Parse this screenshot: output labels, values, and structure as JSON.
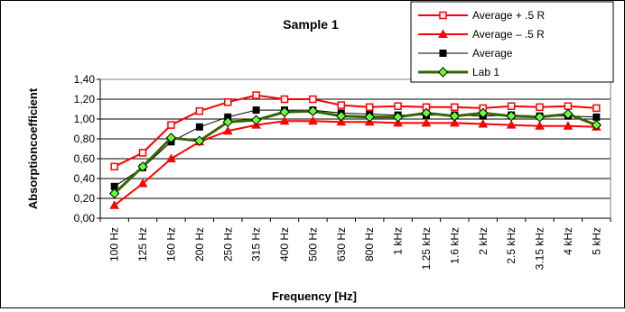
{
  "chart_data": {
    "type": "line",
    "title": "Sample 1",
    "xlabel": "Frequency [Hz]",
    "ylabel": "Absorptioncoefficient",
    "ylim": [
      0,
      1.4
    ],
    "yticks": [
      "0,00",
      "0,20",
      "0,40",
      "0,60",
      "0,80",
      "1,00",
      "1,20",
      "1,40"
    ],
    "grid": "horizontal",
    "legend_position": "top-right",
    "categories": [
      "100 Hz",
      "125 Hz",
      "160 Hz",
      "200 Hz",
      "250 Hz",
      "315 Hz",
      "400 Hz",
      "500 Hz",
      "630 Hz",
      "800 Hz",
      "1 kHz",
      "1.25 kHz",
      "1.6 kHz",
      "2 kHz",
      "2.5 kHz",
      "3.15 kHz",
      "4 kHz",
      "5 kHz"
    ],
    "series": [
      {
        "name": "Average + .5 R",
        "color": "#ff0000",
        "marker": "square-open",
        "values": [
          0.52,
          0.66,
          0.94,
          1.08,
          1.17,
          1.24,
          1.2,
          1.2,
          1.14,
          1.12,
          1.13,
          1.12,
          1.12,
          1.11,
          1.13,
          1.12,
          1.13,
          1.11
        ]
      },
      {
        "name": "Average – .5 R",
        "color": "#ff0000",
        "marker": "triangle",
        "values": [
          0.13,
          0.35,
          0.6,
          0.77,
          0.88,
          0.94,
          0.98,
          0.98,
          0.97,
          0.97,
          0.96,
          0.96,
          0.96,
          0.95,
          0.94,
          0.93,
          0.93,
          0.92
        ]
      },
      {
        "name": "Average",
        "color": "#000000",
        "marker": "square",
        "values": [
          0.32,
          0.51,
          0.77,
          0.92,
          1.02,
          1.09,
          1.09,
          1.09,
          1.06,
          1.05,
          1.04,
          1.04,
          1.04,
          1.03,
          1.04,
          1.03,
          1.03,
          1.02
        ]
      },
      {
        "name": "Lab 1",
        "color": "#336600",
        "marker": "diamond",
        "values": [
          0.25,
          0.52,
          0.81,
          0.78,
          0.97,
          0.99,
          1.07,
          1.08,
          1.03,
          1.02,
          1.02,
          1.06,
          1.03,
          1.06,
          1.03,
          1.02,
          1.05,
          0.94
        ]
      }
    ]
  }
}
